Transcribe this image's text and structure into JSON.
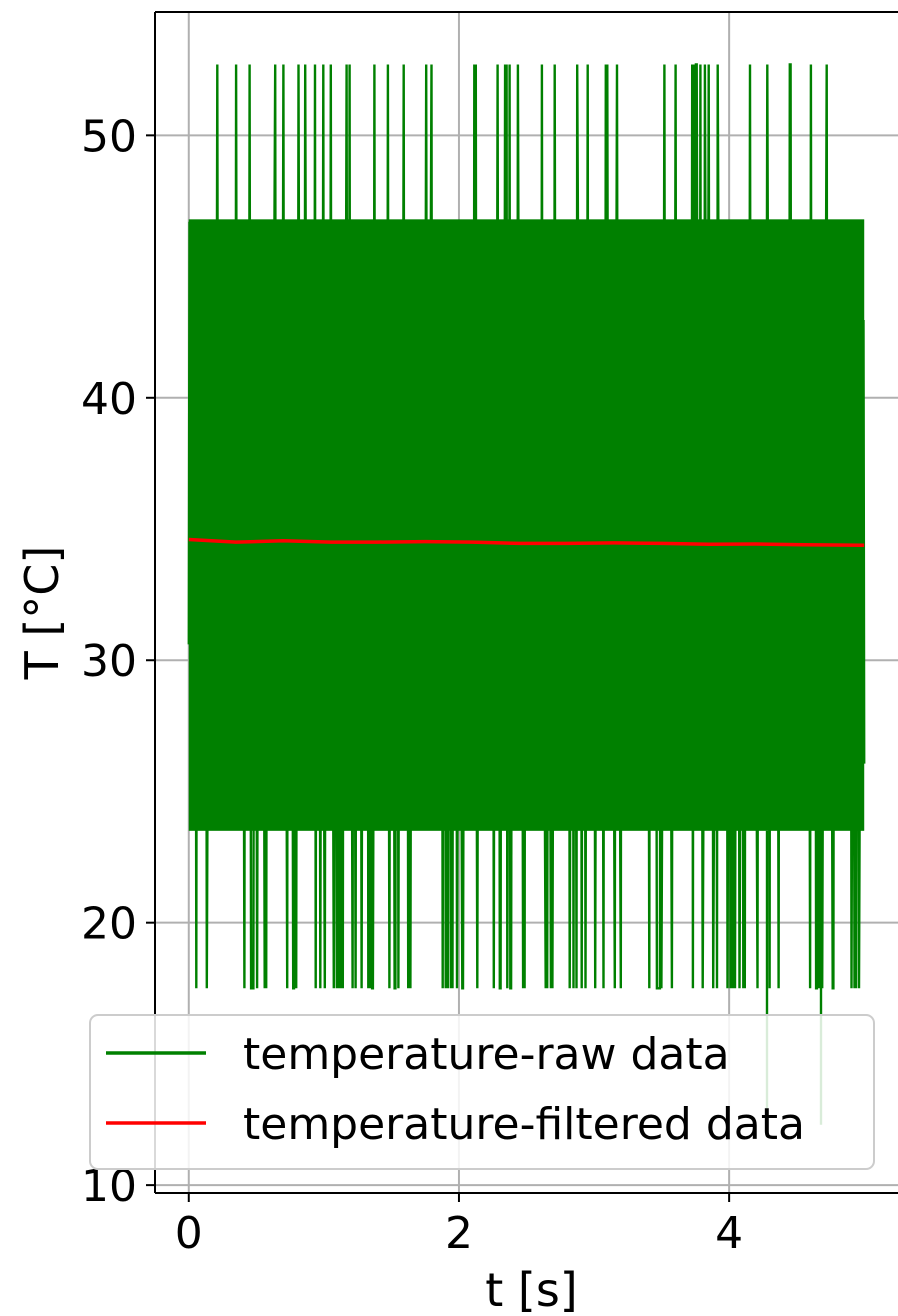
{
  "chart_data": {
    "type": "line",
    "title": "",
    "xlabel": "t [s]",
    "ylabel": "T [°C]",
    "xlim": [
      -0.25,
      5.25
    ],
    "ylim": [
      9.7,
      54.7
    ],
    "grid": true,
    "legend_position": "lower-center",
    "x_ticks": [
      0,
      2,
      4
    ],
    "x_tick_labels": [
      "0",
      "2",
      "4"
    ],
    "y_ticks": [
      10,
      20,
      30,
      40,
      50
    ],
    "y_tick_labels": [
      "10",
      "20",
      "30",
      "40",
      "50"
    ],
    "series": [
      {
        "name": "temperature-raw data",
        "color": "#008000",
        "style": "noisy",
        "x_range": [
          0,
          5
        ],
        "band_low": 23.5,
        "band_high": 46.8,
        "spike_high": 52.7,
        "spike_low": 17.5,
        "outlier_low": 12.3
      },
      {
        "name": "temperature-filtered data",
        "color": "#ff0000",
        "x": [
          0,
          0.35,
          0.7,
          1.05,
          1.4,
          1.75,
          2.1,
          2.45,
          2.8,
          3.15,
          3.5,
          3.85,
          4.2,
          4.55,
          5.0
        ],
        "y": [
          34.6,
          34.5,
          34.55,
          34.5,
          34.5,
          34.52,
          34.5,
          34.45,
          34.45,
          34.47,
          34.45,
          34.42,
          34.43,
          34.4,
          34.38
        ]
      }
    ]
  }
}
